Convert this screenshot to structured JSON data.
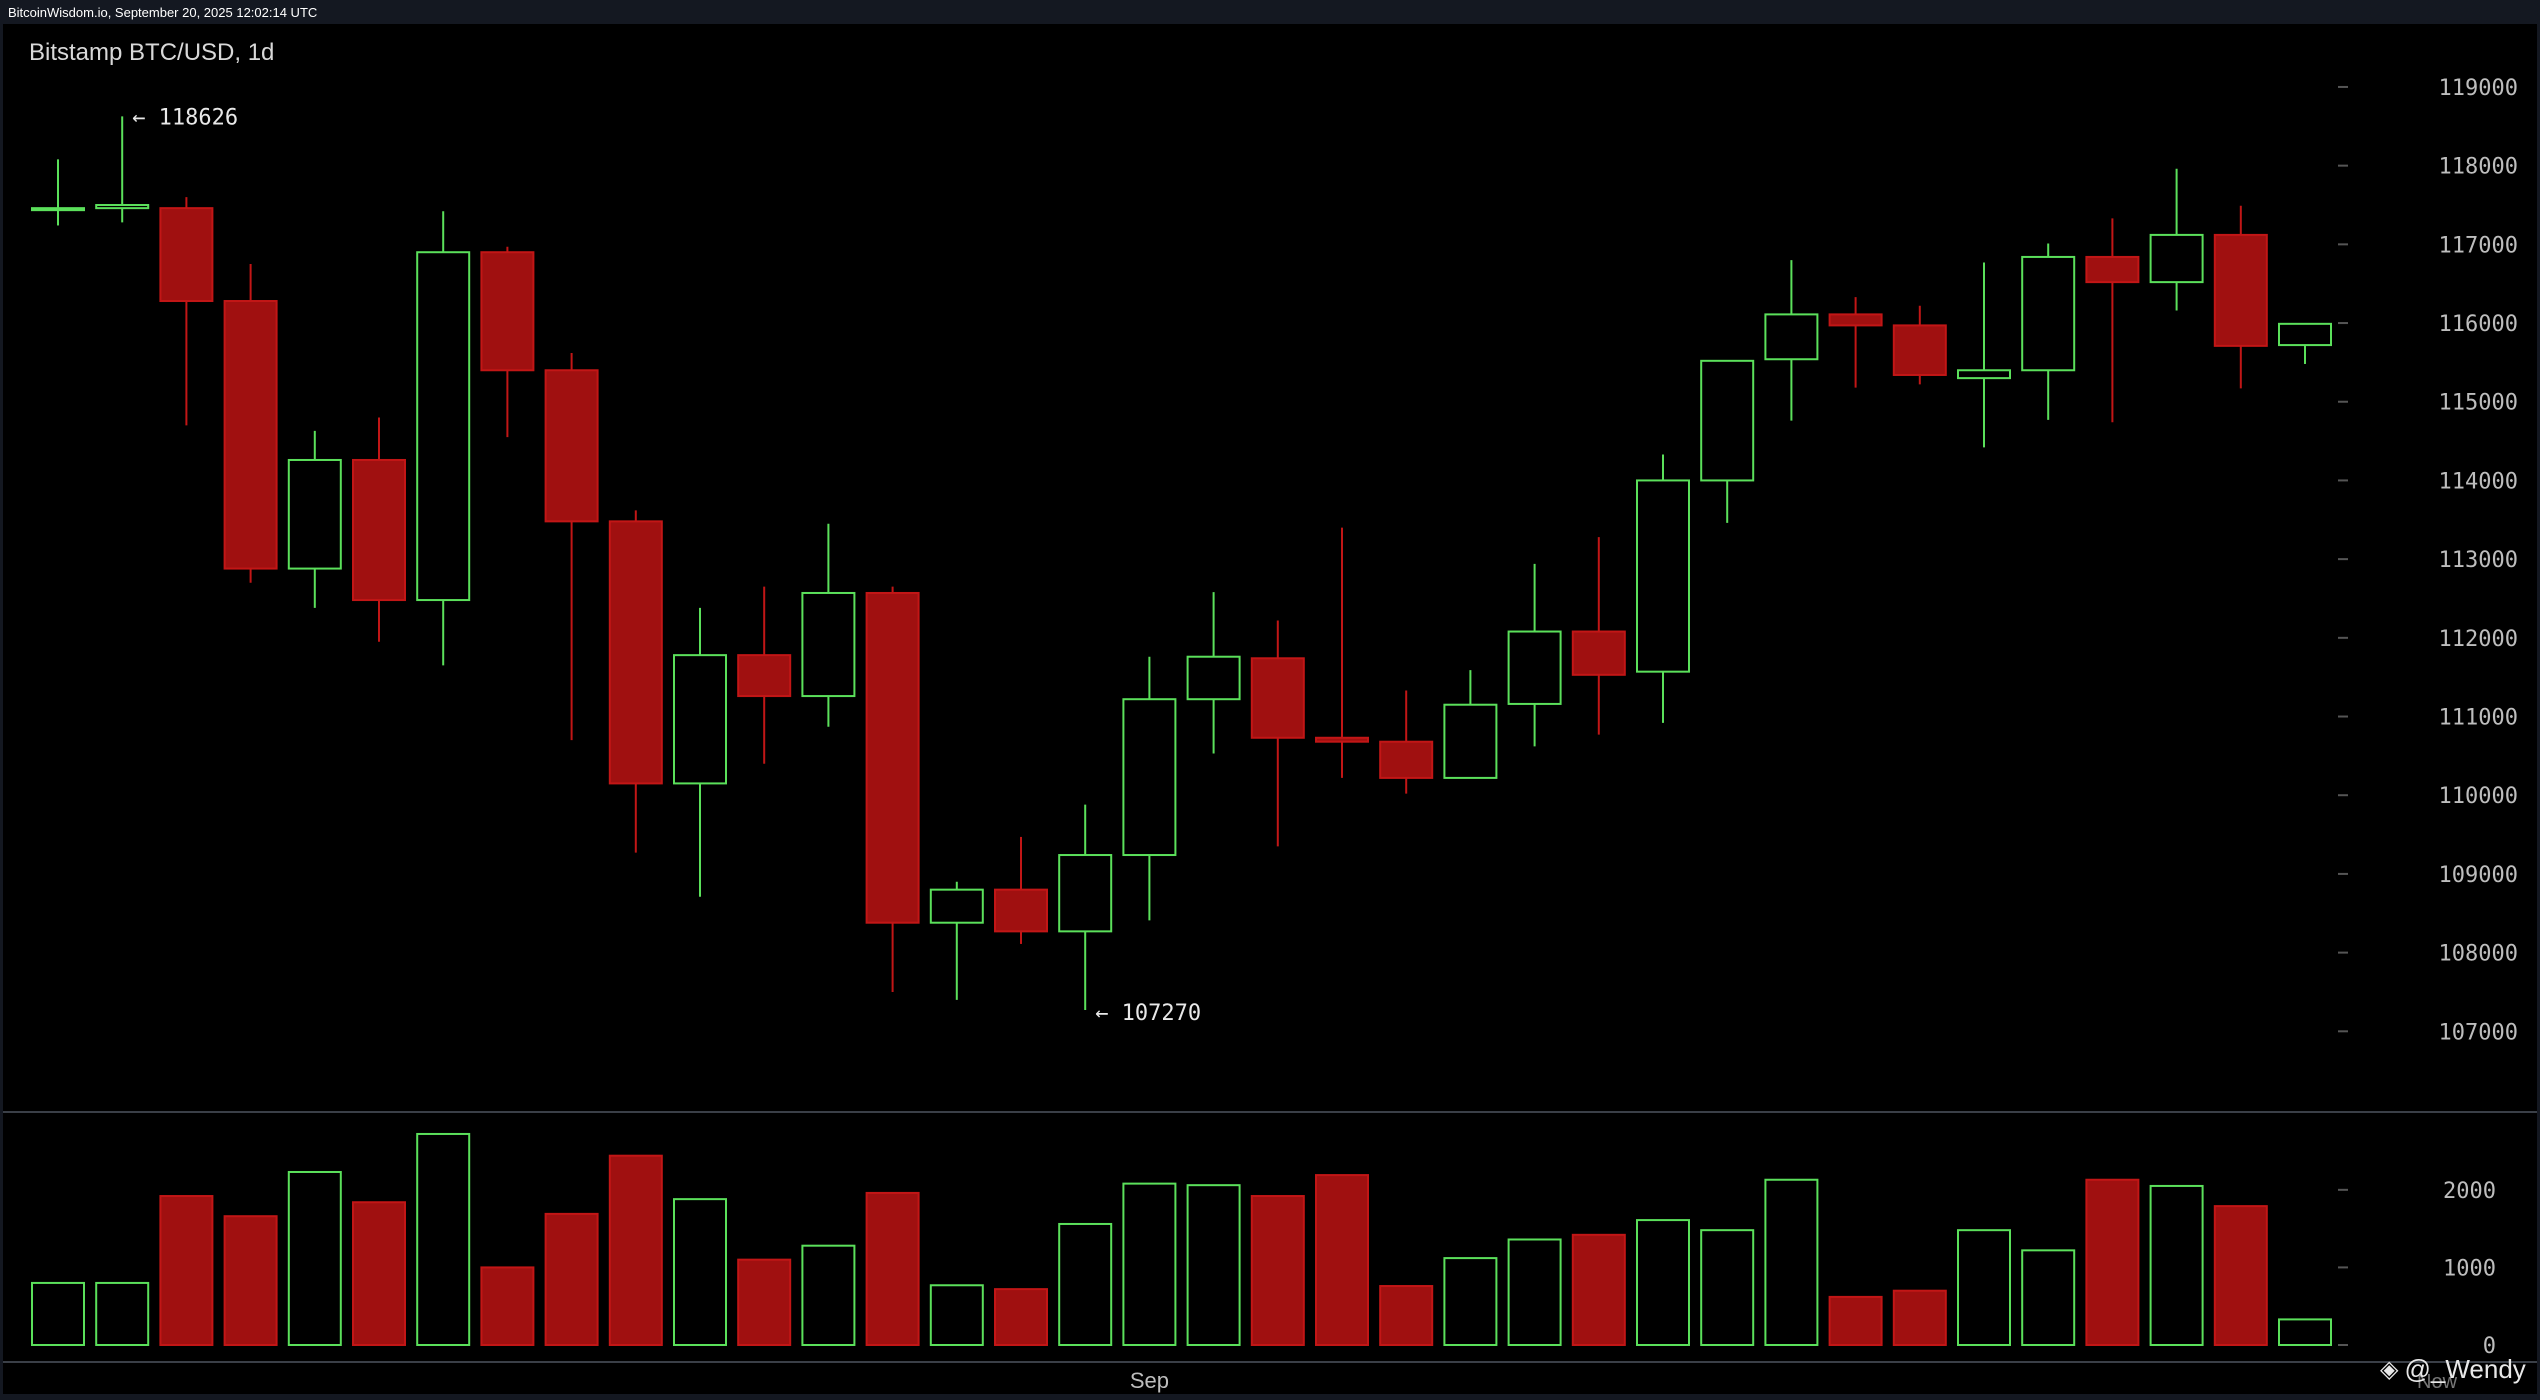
{
  "header": {
    "source_line": "BitcoinWisdom.io, September 20, 2025 12:02:14 UTC"
  },
  "watermark": {
    "text": "@_Wendy",
    "icon": "binance-diamond-icon",
    "partial_label": "Now"
  },
  "colors": {
    "up": "#5be05b",
    "down": "#a01010",
    "down_edge": "#c21616",
    "background": "#000000",
    "frame": "#141821",
    "axis_text": "#bdbdbd",
    "grid_tick": "#555555"
  },
  "chart_data": {
    "type": "candlestick",
    "title": "Bitstamp BTC/USD, 1d",
    "price_ticks": [
      107000,
      108000,
      109000,
      110000,
      111000,
      112000,
      113000,
      114000,
      115000,
      116000,
      117000,
      118000,
      119000
    ],
    "volume_ticks": [
      0,
      1000,
      2000
    ],
    "price_range": [
      106000,
      119800
    ],
    "volume_range": [
      0,
      2900
    ],
    "x_label": "Sep",
    "x_label_index": 17,
    "annotations": [
      {
        "index": 1,
        "value": 118626,
        "label": "← 118626",
        "at": "high"
      },
      {
        "index": 16,
        "value": 107270,
        "label": "← 107270",
        "at": "low"
      }
    ],
    "candles": [
      {
        "o": 117460,
        "h": 118080,
        "l": 117240,
        "c": 117460,
        "v": 800
      },
      {
        "o": 117460,
        "h": 118626,
        "l": 117280,
        "c": 117500,
        "v": 800
      },
      {
        "o": 117460,
        "h": 117600,
        "l": 114700,
        "c": 116280,
        "v": 1920
      },
      {
        "o": 116280,
        "h": 116750,
        "l": 112700,
        "c": 112880,
        "v": 1660
      },
      {
        "o": 112880,
        "h": 114630,
        "l": 112380,
        "c": 114260,
        "v": 2230
      },
      {
        "o": 114260,
        "h": 114800,
        "l": 111950,
        "c": 112480,
        "v": 1840
      },
      {
        "o": 112480,
        "h": 117420,
        "l": 111650,
        "c": 116900,
        "v": 2720
      },
      {
        "o": 116900,
        "h": 116970,
        "l": 114550,
        "c": 115400,
        "v": 1000
      },
      {
        "o": 115400,
        "h": 115620,
        "l": 110700,
        "c": 113480,
        "v": 1690
      },
      {
        "o": 113480,
        "h": 113620,
        "l": 109270,
        "c": 110150,
        "v": 2440
      },
      {
        "o": 110150,
        "h": 112380,
        "l": 108710,
        "c": 111780,
        "v": 1880
      },
      {
        "o": 111780,
        "h": 112650,
        "l": 110400,
        "c": 111260,
        "v": 1100
      },
      {
        "o": 111260,
        "h": 113450,
        "l": 110870,
        "c": 112570,
        "v": 1280
      },
      {
        "o": 112570,
        "h": 112650,
        "l": 107500,
        "c": 108380,
        "v": 1960
      },
      {
        "o": 108380,
        "h": 108900,
        "l": 107400,
        "c": 108800,
        "v": 770
      },
      {
        "o": 108800,
        "h": 109470,
        "l": 108110,
        "c": 108270,
        "v": 720
      },
      {
        "o": 108270,
        "h": 109880,
        "l": 107270,
        "c": 109240,
        "v": 1560
      },
      {
        "o": 109240,
        "h": 111760,
        "l": 108410,
        "c": 111220,
        "v": 2080
      },
      {
        "o": 111220,
        "h": 112580,
        "l": 110530,
        "c": 111760,
        "v": 2060
      },
      {
        "o": 111740,
        "h": 112220,
        "l": 109350,
        "c": 110730,
        "v": 1920
      },
      {
        "o": 110730,
        "h": 113400,
        "l": 110220,
        "c": 110680,
        "v": 2190
      },
      {
        "o": 110680,
        "h": 111330,
        "l": 110020,
        "c": 110220,
        "v": 760
      },
      {
        "o": 110220,
        "h": 111590,
        "l": 110220,
        "c": 111150,
        "v": 1120
      },
      {
        "o": 111160,
        "h": 112940,
        "l": 110620,
        "c": 112080,
        "v": 1360
      },
      {
        "o": 112080,
        "h": 113280,
        "l": 110770,
        "c": 111530,
        "v": 1420
      },
      {
        "o": 111570,
        "h": 114330,
        "l": 110920,
        "c": 114000,
        "v": 1610
      },
      {
        "o": 114000,
        "h": 115520,
        "l": 113460,
        "c": 115520,
        "v": 1480
      },
      {
        "o": 115540,
        "h": 116800,
        "l": 114760,
        "c": 116110,
        "v": 2130
      },
      {
        "o": 116110,
        "h": 116330,
        "l": 115180,
        "c": 115970,
        "v": 620
      },
      {
        "o": 115970,
        "h": 116220,
        "l": 115220,
        "c": 115340,
        "v": 700
      },
      {
        "o": 115300,
        "h": 116770,
        "l": 114420,
        "c": 115400,
        "v": 1480
      },
      {
        "o": 115400,
        "h": 117010,
        "l": 114770,
        "c": 116840,
        "v": 1220
      },
      {
        "o": 116840,
        "h": 117330,
        "l": 114740,
        "c": 116520,
        "v": 2130
      },
      {
        "o": 116520,
        "h": 117960,
        "l": 116160,
        "c": 117120,
        "v": 2050
      },
      {
        "o": 117120,
        "h": 117490,
        "l": 115170,
        "c": 115710,
        "v": 1790
      },
      {
        "o": 115720,
        "h": 116000,
        "l": 115480,
        "c": 115990,
        "v": 330
      }
    ]
  }
}
